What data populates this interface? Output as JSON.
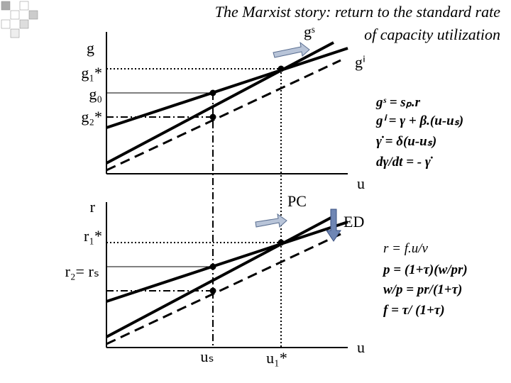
{
  "title": {
    "line1": "The Marxist story: return to the standard rate",
    "line2": "of capacity utilization"
  },
  "upper": {
    "y_axis": "g",
    "g1_star": "g₁*",
    "g0": "g₀",
    "g2_star": "g₂*",
    "gs_label": "gˢ",
    "gi_label": "gⁱ",
    "x_axis": "u",
    "equations": [
      "gˢ = sₚ.r",
      "gⁱ = γ + β.(u-uₛ)",
      "γ̇ = δ(u-uₛ)",
      "dγ/dt = - γ̇"
    ]
  },
  "lower": {
    "y_axis": "r",
    "r1_star": "r₁*",
    "r2_rs": "r₂= rₛ",
    "pc": "PC",
    "ed": "ED",
    "us": "uₛ",
    "u1_star": "u₁*",
    "x_axis": "u",
    "equations": [
      "r = f.u/v",
      "p = (1+τ)(w/pr)",
      "w/p = pr/(1+τ)",
      "f = τ/ (1+τ)"
    ]
  }
}
